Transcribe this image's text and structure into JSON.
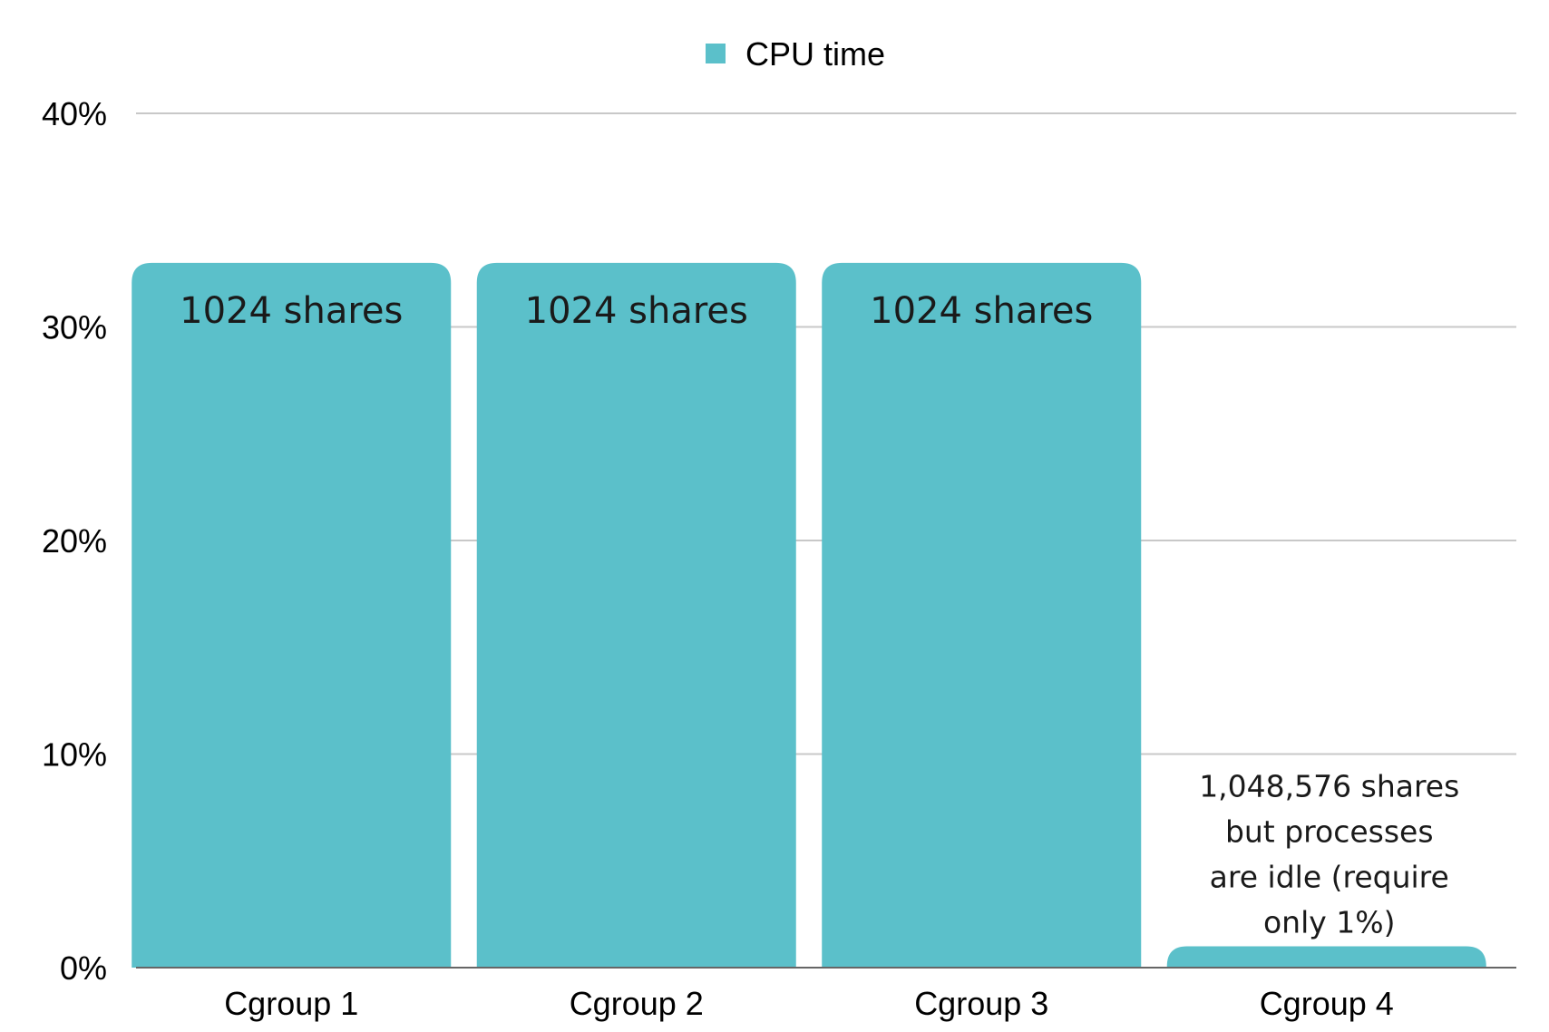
{
  "chart_data": {
    "type": "bar",
    "categories": [
      "Cgroup 1",
      "Cgroup 2",
      "Cgroup 3",
      "Cgroup 4"
    ],
    "series": [
      {
        "name": "CPU time",
        "values": [
          33,
          33,
          33,
          1
        ]
      }
    ],
    "y_ticks": [
      "0%",
      "10%",
      "20%",
      "30%",
      "40%"
    ],
    "ylim": [
      0,
      40
    ],
    "grid": true,
    "legend_position": "top-center",
    "bar_labels": [
      "1024 shares",
      "1024 shares",
      "1024 shares"
    ],
    "annotation_lines": [
      "1,048,576 shares",
      "but processes",
      "are idle (require",
      "only 1%)"
    ],
    "colors": {
      "bar": "#5bc0ca",
      "grid": "#c8c8c8",
      "axis": "#666666"
    }
  }
}
